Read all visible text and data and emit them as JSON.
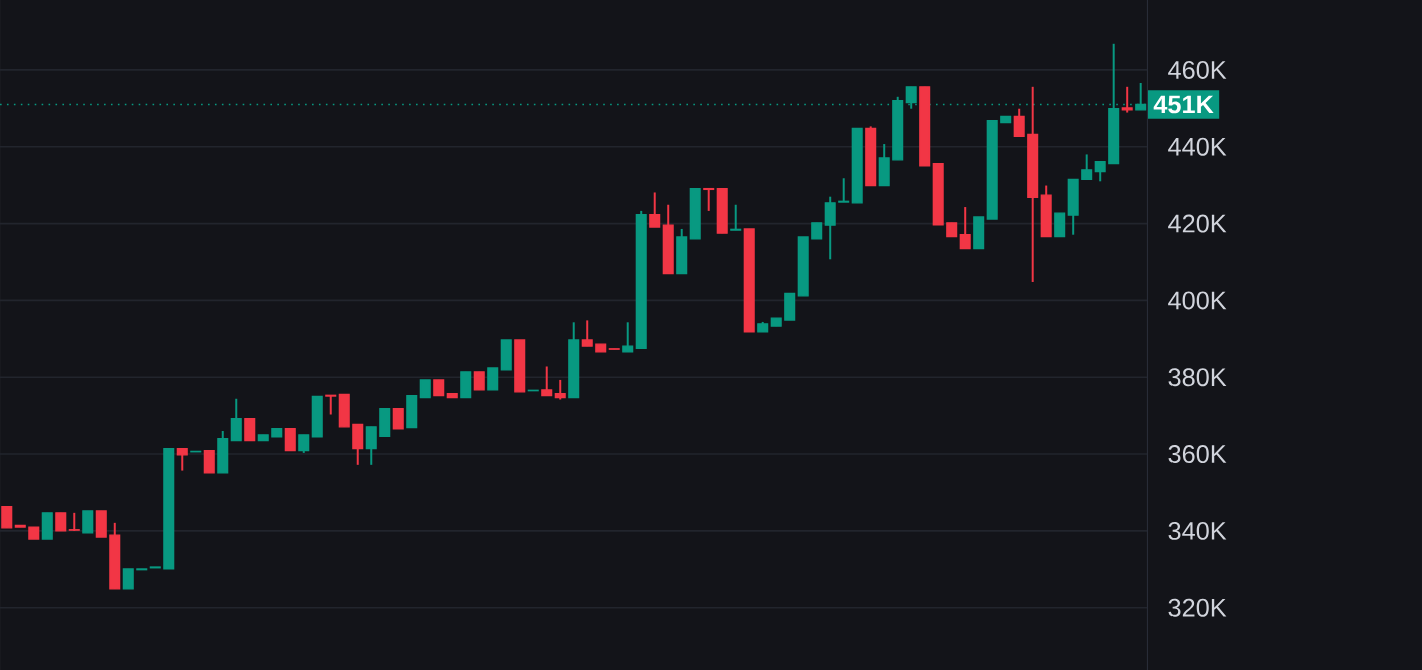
{
  "chart_data": {
    "type": "candlestick",
    "categories": [
      null,
      null,
      null,
      null,
      null,
      null,
      null,
      null,
      null,
      null,
      null,
      null,
      null,
      null,
      null,
      null,
      null,
      null,
      null,
      null,
      null,
      null,
      null,
      null,
      null,
      null,
      null,
      null,
      null,
      null,
      null,
      null,
      null,
      null,
      null,
      null,
      null,
      null,
      null,
      null,
      null,
      null,
      null,
      null,
      null,
      null,
      null,
      null,
      null,
      null,
      null,
      null,
      null,
      null,
      null,
      null,
      null,
      null,
      null,
      null,
      null,
      null,
      null,
      null,
      null,
      null,
      null,
      null,
      null,
      null,
      null,
      null,
      null,
      null,
      null,
      null,
      null,
      null,
      null,
      null,
      null,
      null,
      null,
      null,
      null
    ],
    "ohlc": [
      [
        346.3,
        346.3,
        340.8,
        340.8
      ],
      [
        341.4,
        341.4,
        341.0,
        341.0
      ],
      [
        341.0,
        341.0,
        337.9,
        337.9
      ],
      [
        337.9,
        344.7,
        337.9,
        344.7
      ],
      [
        344.7,
        344.7,
        340.0,
        340.0
      ],
      [
        340.3,
        344.7,
        340.0,
        340.2
      ],
      [
        339.5,
        345.2,
        339.5,
        345.2
      ],
      [
        345.2,
        345.2,
        338.4,
        338.4
      ],
      [
        338.9,
        342.1,
        324.9,
        324.9
      ],
      [
        324.9,
        330.1,
        324.9,
        330.1
      ],
      [
        329.9,
        330.1,
        329.9,
        330.1
      ],
      [
        330.4,
        330.6,
        330.4,
        330.6
      ],
      [
        330.1,
        361.4,
        330.1,
        361.4
      ],
      [
        361.4,
        361.4,
        355.7,
        359.8
      ],
      [
        360.6,
        360.7,
        360.6,
        360.7
      ],
      [
        360.9,
        360.9,
        355.1,
        355.1
      ],
      [
        355.1,
        366.0,
        355.1,
        364.0
      ],
      [
        363.5,
        374.4,
        363.5,
        369.2
      ],
      [
        369.2,
        369.2,
        363.5,
        363.5
      ],
      [
        363.5,
        365.0,
        363.5,
        365.0
      ],
      [
        364.5,
        366.6,
        364.5,
        366.6
      ],
      [
        366.6,
        366.6,
        360.9,
        360.9
      ],
      [
        360.9,
        365.0,
        360.3,
        365.0
      ],
      [
        364.5,
        375.0,
        364.5,
        375.0
      ],
      [
        375.3,
        375.3,
        370.3,
        375.1
      ],
      [
        375.5,
        375.5,
        367.1,
        367.1
      ],
      [
        367.7,
        367.7,
        357.2,
        361.4
      ],
      [
        361.4,
        367.1,
        357.2,
        367.1
      ],
      [
        364.6,
        371.8,
        364.6,
        371.8
      ],
      [
        371.8,
        371.8,
        366.6,
        366.6
      ],
      [
        366.9,
        375.2,
        366.9,
        375.2
      ],
      [
        374.7,
        379.3,
        374.7,
        379.3
      ],
      [
        379.3,
        379.3,
        375.2,
        375.2
      ],
      [
        375.7,
        375.7,
        374.7,
        374.7
      ],
      [
        374.7,
        381.4,
        374.7,
        381.4
      ],
      [
        381.4,
        381.4,
        376.7,
        376.7
      ],
      [
        376.7,
        382.4,
        376.7,
        382.4
      ],
      [
        381.9,
        389.7,
        381.9,
        389.7
      ],
      [
        389.7,
        389.7,
        376.2,
        376.2
      ],
      [
        376.5,
        376.6,
        376.5,
        376.6
      ],
      [
        376.7,
        382.8,
        375.2,
        375.2
      ],
      [
        375.7,
        379.3,
        374.2,
        374.7
      ],
      [
        374.7,
        394.3,
        374.7,
        389.7
      ],
      [
        389.7,
        394.8,
        388.1,
        388.1
      ],
      [
        388.6,
        388.6,
        386.6,
        386.6
      ],
      [
        387.4,
        387.4,
        387.3,
        387.3
      ],
      [
        386.6,
        394.3,
        386.6,
        388.1
      ],
      [
        387.5,
        423.3,
        387.5,
        422.3
      ],
      [
        422.3,
        428.1,
        419.1,
        419.1
      ],
      [
        419.6,
        424.9,
        407.0,
        407.0
      ],
      [
        407.0,
        418.6,
        407.0,
        416.5
      ],
      [
        416.0,
        429.1,
        416.0,
        429.1
      ],
      [
        429.1,
        429.1,
        423.3,
        428.9
      ],
      [
        429.1,
        429.1,
        417.5,
        417.5
      ],
      [
        418.3,
        424.9,
        418.3,
        418.5
      ],
      [
        418.6,
        418.6,
        391.8,
        391.8
      ],
      [
        391.8,
        394.4,
        391.8,
        393.9
      ],
      [
        393.3,
        395.4,
        393.3,
        395.4
      ],
      [
        394.9,
        401.8,
        394.9,
        401.8
      ],
      [
        401.2,
        416.5,
        401.2,
        416.5
      ],
      [
        416.0,
        420.2,
        416.0,
        420.2
      ],
      [
        419.6,
        427.0,
        410.7,
        425.4
      ],
      [
        425.6,
        431.8,
        425.6,
        425.8
      ],
      [
        425.4,
        444.8,
        425.4,
        444.8
      ],
      [
        444.8,
        445.3,
        429.9,
        429.9
      ],
      [
        429.9,
        440.7,
        429.9,
        437.1
      ],
      [
        436.6,
        453.0,
        436.6,
        452.0
      ],
      [
        451.5,
        455.6,
        449.9,
        455.6
      ],
      [
        455.6,
        455.6,
        435.0,
        435.0
      ],
      [
        435.6,
        435.6,
        419.7,
        419.7
      ],
      [
        420.2,
        420.2,
        416.6,
        416.6
      ],
      [
        417.1,
        424.3,
        413.5,
        413.5
      ],
      [
        413.5,
        421.7,
        413.5,
        421.7
      ],
      [
        421.2,
        446.8,
        421.2,
        446.8
      ],
      [
        446.3,
        447.9,
        446.3,
        447.9
      ],
      [
        447.9,
        449.9,
        442.7,
        442.7
      ],
      [
        443.2,
        455.6,
        404.8,
        426.8
      ],
      [
        427.4,
        429.9,
        416.6,
        416.6
      ],
      [
        416.6,
        422.7,
        416.6,
        422.7
      ],
      [
        422.2,
        431.5,
        417.1,
        431.5
      ],
      [
        431.5,
        438.0,
        431.5,
        434.0
      ],
      [
        433.5,
        436.1,
        431.0,
        436.1
      ],
      [
        435.6,
        466.8,
        435.6,
        449.9
      ],
      [
        450.1,
        455.6,
        448.9,
        449.6
      ],
      [
        449.6,
        456.6,
        449.6,
        451.0
      ]
    ],
    "colors": [
      "#f23645",
      "#f23645",
      "#f23645",
      "#089981",
      "#f23645",
      "#f23645",
      "#089981",
      "#f23645",
      "#f23645",
      "#089981",
      "#089981",
      "#089981",
      "#089981",
      "#f23645",
      "#089981",
      "#f23645",
      "#089981",
      "#089981",
      "#f23645",
      "#089981",
      "#089981",
      "#f23645",
      "#089981",
      "#089981",
      "#f23645",
      "#f23645",
      "#f23645",
      "#089981",
      "#089981",
      "#f23645",
      "#089981",
      "#089981",
      "#f23645",
      "#f23645",
      "#089981",
      "#f23645",
      "#089981",
      "#089981",
      "#f23645",
      "#089981",
      "#f23645",
      "#f23645",
      "#089981",
      "#f23645",
      "#f23645",
      "#f23645",
      "#089981",
      "#089981",
      "#f23645",
      "#f23645",
      "#089981",
      "#089981",
      "#f23645",
      "#f23645",
      "#089981",
      "#f23645",
      "#089981",
      "#089981",
      "#089981",
      "#089981",
      "#089981",
      "#089981",
      "#089981",
      "#089981",
      "#f23645",
      "#089981",
      "#089981",
      "#089981",
      "#f23645",
      "#f23645",
      "#f23645",
      "#f23645",
      "#089981",
      "#089981",
      "#089981",
      "#f23645",
      "#f23645",
      "#f23645",
      "#089981",
      "#089981",
      "#089981",
      "#089981",
      "#089981",
      "#f23645",
      "#089981"
    ],
    "ylim": [
      303.8,
      478.2
    ],
    "yticks": [
      {
        "value": 320,
        "label": "320K"
      },
      {
        "value": 340,
        "label": "340K"
      },
      {
        "value": 360,
        "label": "360K"
      },
      {
        "value": 380,
        "label": "380K"
      },
      {
        "value": 400,
        "label": "400K"
      },
      {
        "value": 420,
        "label": "420K"
      },
      {
        "value": 440,
        "label": "440K"
      },
      {
        "value": 460,
        "label": "460K"
      }
    ],
    "grid": "y",
    "tick_labels": "y",
    "ref_lines": [
      {
        "axis": "y",
        "value": 451,
        "label": "451K",
        "color": "#089981",
        "line_style": "dotted"
      }
    ]
  }
}
